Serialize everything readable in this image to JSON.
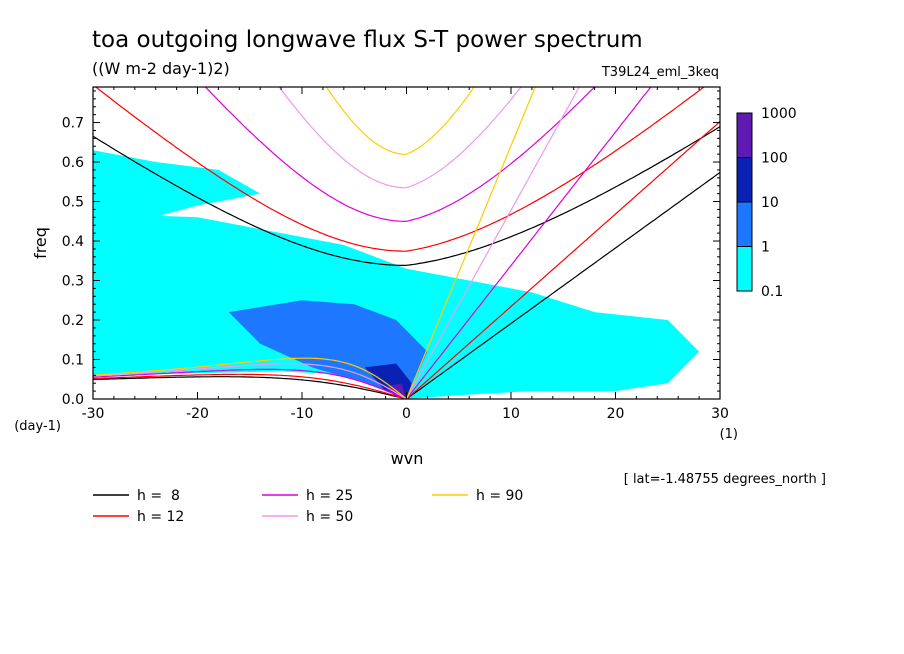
{
  "chart_data": {
    "type": "heatmap",
    "title": "toa outgoing longwave flux S-T power spectrum",
    "subtitle": "((W m-2 day-1)2)",
    "run_label": "T39L24_eml_3keq",
    "xlabel": "wvn",
    "ylabel": "freq",
    "x_unit": "(1)",
    "y_unit": "(day-1)",
    "xlim": [
      -30,
      30
    ],
    "ylim": [
      0,
      0.79
    ],
    "x_ticks": [
      -30,
      -20,
      -10,
      0,
      10,
      20,
      30
    ],
    "x_tick_labels": [
      "-30",
      "-20",
      "-10",
      "0",
      "10",
      "20",
      "30"
    ],
    "y_ticks": [
      0,
      0.1,
      0.2,
      0.3,
      0.4,
      0.5,
      0.6,
      0.7
    ],
    "y_tick_labels": [
      "0.0",
      "0.1",
      "0.2",
      "0.3",
      "0.4",
      "0.5",
      "0.6",
      "0.7"
    ],
    "footer_note": "[ lat=-1.48755 degrees_north ]",
    "colorbar": {
      "levels": [
        0.1,
        1,
        10,
        100,
        1000
      ],
      "labels": [
        "0.1",
        "1",
        "10",
        "100",
        "1000"
      ],
      "colors": [
        "#00ffff",
        "#1e78ff",
        "#0a22b4",
        "#5f1ab4"
      ]
    },
    "fill_regions": [
      {
        "level": 1,
        "points": [
          [
            -30,
            0.06
          ],
          [
            -30,
            0.47
          ],
          [
            -20,
            0.46
          ],
          [
            -12,
            0.42
          ],
          [
            -6,
            0.39
          ],
          [
            0,
            0.33
          ],
          [
            6,
            0.3
          ],
          [
            12,
            0.27
          ],
          [
            18,
            0.22
          ],
          [
            25,
            0.2
          ],
          [
            28,
            0.12
          ],
          [
            25,
            0.04
          ],
          [
            20,
            0.02
          ],
          [
            12,
            0.02
          ],
          [
            5,
            0.01
          ],
          [
            0,
            0.0
          ],
          [
            -5,
            0.06
          ],
          [
            -12,
            0.07
          ],
          [
            -20,
            0.065
          ]
        ]
      },
      {
        "level": 1,
        "points": [
          [
            -30,
            0.2
          ],
          [
            -30,
            0.63
          ],
          [
            -24,
            0.6
          ],
          [
            -18,
            0.58
          ],
          [
            -14,
            0.52
          ],
          [
            -20,
            0.49
          ],
          [
            -27,
            0.44
          ]
        ]
      },
      {
        "level": 2,
        "points": [
          [
            -17,
            0.22
          ],
          [
            -10,
            0.25
          ],
          [
            -5,
            0.24
          ],
          [
            -1,
            0.2
          ],
          [
            2,
            0.12
          ],
          [
            0,
            0.0
          ],
          [
            -4,
            0.04
          ],
          [
            -9,
            0.08
          ],
          [
            -14,
            0.14
          ]
        ]
      },
      {
        "level": 3,
        "points": [
          [
            -4,
            0.08
          ],
          [
            -1,
            0.09
          ],
          [
            0.5,
            0.04
          ],
          [
            0,
            0.0
          ],
          [
            -2,
            0.02
          ]
        ]
      },
      {
        "level": 4,
        "points": [
          [
            -2,
            0.03
          ],
          [
            -0.5,
            0.04
          ],
          [
            0,
            0.0
          ],
          [
            -1.2,
            0.01
          ]
        ]
      }
    ],
    "series": [
      {
        "name": "h =  8",
        "h": 8,
        "color": "#000000"
      },
      {
        "name": "h = 12",
        "h": 12,
        "color": "#ff0000"
      },
      {
        "name": "h = 25",
        "h": 25,
        "color": "#dd00dd"
      },
      {
        "name": "h = 50",
        "h": 50,
        "color": "#ee99ee"
      },
      {
        "name": "h = 90",
        "h": 90,
        "color": "#ffcc00"
      }
    ]
  }
}
